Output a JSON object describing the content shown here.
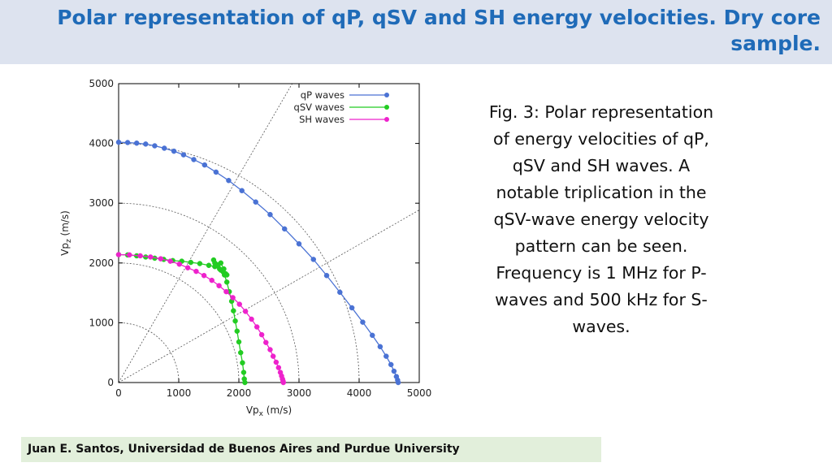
{
  "header": {
    "title": "Polar representation of qP, qSV and SH energy velocities. Dry core sample."
  },
  "caption": {
    "text": "Fig. 3: Polar representation of energy velocities of qP, qSV and SH waves. A notable triplication in the qSV-wave energy velocity pattern can be seen. Frequency is 1 MHz for P-waves and 500 kHz for S-waves."
  },
  "footer": {
    "text": "Juan E. Santos, Universidad de Buenos Aires and Purdue University"
  },
  "chart_data": {
    "type": "scatter",
    "xlabel": "Vpx (m/s)",
    "ylabel": "Vpz (m/s)",
    "xlim": [
      0,
      5000
    ],
    "ylim": [
      0,
      5000
    ],
    "xticks": [
      "0",
      "1000",
      "2000",
      "3000",
      "4000",
      "5000"
    ],
    "yticks": [
      "0",
      "1000",
      "2000",
      "3000",
      "4000",
      "5000"
    ],
    "grid": "polar",
    "polar_grid": {
      "radii": [
        1000,
        2000,
        3000,
        4000
      ],
      "angles_deg": [
        30,
        60
      ]
    },
    "legend": "top-right",
    "series": [
      {
        "name": "qP waves",
        "color": "#4a72d4",
        "x": [
          0,
          150,
          300,
          450,
          600,
          760,
          920,
          1080,
          1250,
          1430,
          1620,
          1830,
          2050,
          2280,
          2520,
          2760,
          3000,
          3240,
          3460,
          3680,
          3880,
          4060,
          4220,
          4350,
          4450,
          4530,
          4580,
          4620,
          4640,
          4650
        ],
        "y": [
          4020,
          4015,
          4005,
          3990,
          3960,
          3920,
          3870,
          3810,
          3730,
          3640,
          3520,
          3380,
          3210,
          3020,
          2810,
          2570,
          2320,
          2060,
          1790,
          1510,
          1250,
          1010,
          790,
          600,
          440,
          300,
          190,
          100,
          40,
          0
        ]
      },
      {
        "name": "qSV waves",
        "color": "#22cc22",
        "x": [
          0,
          150,
          300,
          450,
          600,
          750,
          900,
          1050,
          1200,
          1350,
          1500,
          1600,
          1650,
          1700,
          1750,
          1800,
          1780,
          1740,
          1680,
          1620,
          1580,
          1600,
          1650,
          1700,
          1760,
          1800,
          1840,
          1880,
          1910,
          1940,
          1970,
          2000,
          2030,
          2060,
          2080,
          2090,
          2100
        ],
        "y": [
          2140,
          2135,
          2120,
          2100,
          2080,
          2060,
          2040,
          2030,
          2010,
          1990,
          1960,
          1940,
          1970,
          2000,
          1900,
          1800,
          1820,
          1850,
          1900,
          1950,
          2050,
          2000,
          1950,
          1880,
          1800,
          1680,
          1520,
          1360,
          1200,
          1030,
          860,
          680,
          500,
          330,
          170,
          60,
          0
        ]
      },
      {
        "name": "SH waves",
        "color": "#ee22cc",
        "x": [
          0,
          180,
          360,
          530,
          700,
          860,
          1010,
          1150,
          1290,
          1420,
          1550,
          1670,
          1790,
          1900,
          2010,
          2110,
          2210,
          2300,
          2380,
          2450,
          2520,
          2570,
          2620,
          2660,
          2690,
          2710,
          2725,
          2735,
          2740
        ],
        "y": [
          2140,
          2135,
          2120,
          2100,
          2070,
          2030,
          1980,
          1920,
          1860,
          1790,
          1710,
          1620,
          1520,
          1420,
          1310,
          1190,
          1060,
          930,
          800,
          670,
          550,
          440,
          340,
          250,
          170,
          110,
          60,
          25,
          0
        ]
      }
    ]
  }
}
